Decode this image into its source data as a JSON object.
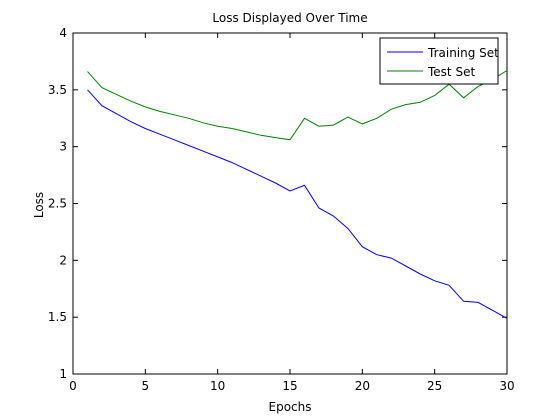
{
  "chart_data": {
    "type": "line",
    "title": "Loss Displayed Over Time",
    "xlabel": "Epochs",
    "ylabel": "Loss",
    "xlim": [
      0,
      30
    ],
    "ylim": [
      1,
      4
    ],
    "xticks": [
      0,
      5,
      10,
      15,
      20,
      25,
      30
    ],
    "yticks": [
      1,
      1.5,
      2,
      2.5,
      3,
      3.5,
      4
    ],
    "xtick_labels": [
      "0",
      "5",
      "10",
      "15",
      "20",
      "25",
      "30"
    ],
    "ytick_labels": [
      "1",
      "1.5",
      "2",
      "2.5",
      "3",
      "3.5",
      "4"
    ],
    "grid": false,
    "legend_position": "top-right",
    "x": [
      1,
      2,
      3,
      4,
      5,
      6,
      7,
      8,
      9,
      10,
      11,
      12,
      13,
      14,
      15,
      16,
      17,
      18,
      19,
      20,
      21,
      22,
      23,
      24,
      25,
      26,
      27,
      28,
      29,
      30
    ],
    "series": [
      {
        "name": "Training Set",
        "color": "#0000ff",
        "values": [
          3.5,
          3.36,
          3.29,
          3.22,
          3.16,
          3.11,
          3.06,
          3.01,
          2.96,
          2.91,
          2.86,
          2.8,
          2.74,
          2.68,
          2.61,
          2.66,
          2.46,
          2.39,
          2.28,
          2.12,
          2.05,
          2.02,
          1.95,
          1.88,
          1.82,
          1.78,
          1.64,
          1.63,
          1.56,
          1.49
        ]
      },
      {
        "name": "Test Set",
        "color": "#008000",
        "values": [
          3.66,
          3.52,
          3.46,
          3.4,
          3.35,
          3.31,
          3.28,
          3.25,
          3.21,
          3.18,
          3.16,
          3.13,
          3.1,
          3.08,
          3.06,
          3.25,
          3.18,
          3.19,
          3.26,
          3.2,
          3.25,
          3.33,
          3.37,
          3.39,
          3.45,
          3.55,
          3.43,
          3.53,
          3.59,
          3.67
        ]
      }
    ]
  }
}
